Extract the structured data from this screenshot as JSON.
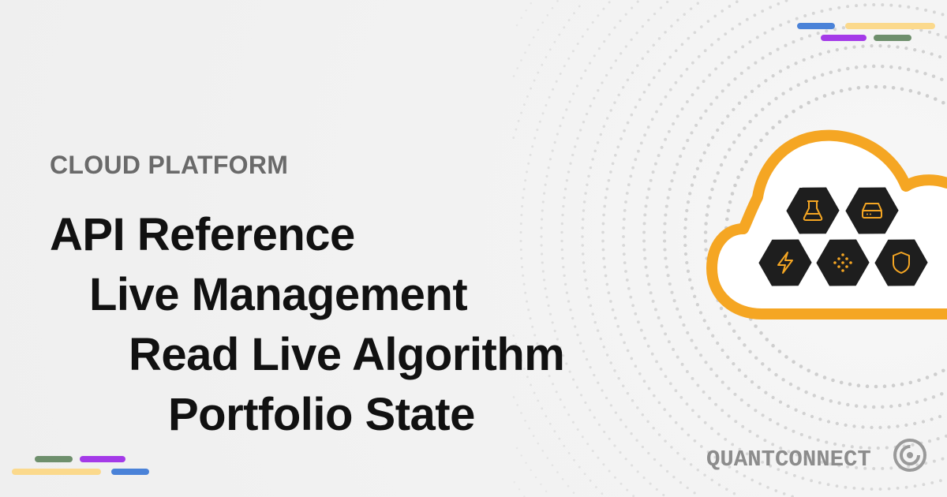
{
  "eyebrow": "CLOUD PLATFORM",
  "title_lines": [
    "API Reference",
    "Live Management",
    "Read Live Algorithm",
    "Portfolio State"
  ],
  "brand": {
    "name": "QUANTCONNECT"
  },
  "colors": {
    "blue": "#4a82d8",
    "yellow": "#fbd98c",
    "purple": "#a43ae8",
    "green": "#6e8f6c",
    "cloud_orange": "#f5a623",
    "hex_dark": "#1e1e1e",
    "icon_orange": "#f5a623"
  },
  "cloud_icons": [
    "flask-icon",
    "server-icon",
    "lightning-icon",
    "dots-icon",
    "shield-icon"
  ]
}
